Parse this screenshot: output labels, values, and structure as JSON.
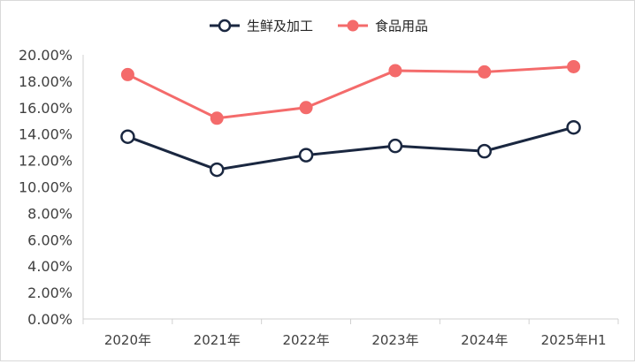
{
  "chart_data": {
    "type": "line",
    "categories": [
      "2020年",
      "2021年",
      "2022年",
      "2023年",
      "2024年",
      "2025年H1"
    ],
    "series": [
      {
        "name": "生鲜及加工",
        "values": [
          13.8,
          11.3,
          12.4,
          13.1,
          12.7,
          14.5
        ],
        "color": "#1a2740",
        "marker": "hollow-circle"
      },
      {
        "name": "食品用品",
        "values": [
          18.5,
          15.2,
          16.0,
          18.8,
          18.7,
          19.1
        ],
        "color": "#f46b6b",
        "marker": "filled-circle"
      }
    ],
    "yticks": [
      "0.00%",
      "2.00%",
      "4.00%",
      "6.00%",
      "8.00%",
      "10.00%",
      "12.00%",
      "14.00%",
      "16.00%",
      "18.00%",
      "20.00%"
    ],
    "ylim": [
      0,
      20
    ],
    "grid": false,
    "legend_position": "top-center"
  }
}
